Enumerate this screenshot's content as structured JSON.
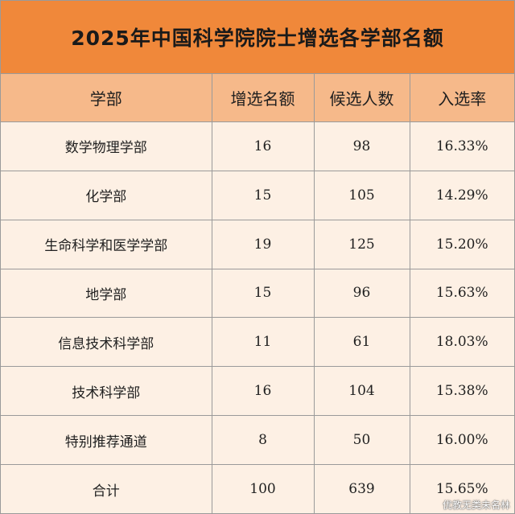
{
  "chart_data": {
    "type": "table",
    "title": "2025年中国科学院院士增选各学部名额",
    "columns": [
      "学部",
      "增选名额",
      "候选人数",
      "入选率"
    ],
    "rows": [
      [
        "数学物理学部",
        "16",
        "98",
        "16.33%"
      ],
      [
        "化学部",
        "15",
        "105",
        "14.29%"
      ],
      [
        "生命科学和医学学部",
        "19",
        "125",
        "15.20%"
      ],
      [
        "地学部",
        "15",
        "96",
        "15.63%"
      ],
      [
        "信息技术科学部",
        "11",
        "61",
        "18.03%"
      ],
      [
        "技术科学部",
        "16",
        "104",
        "15.38%"
      ],
      [
        "特别推荐通道",
        "8",
        "50",
        "16.00%"
      ],
      [
        "合计",
        "100",
        "639",
        "15.65%"
      ]
    ]
  },
  "watermark": "优教无类未名林",
  "colors": {
    "title_bg": "#f0883a",
    "header_bg": "#f6b98a",
    "body_bg": "#fdf0e4",
    "border": "#9a9a9a"
  }
}
